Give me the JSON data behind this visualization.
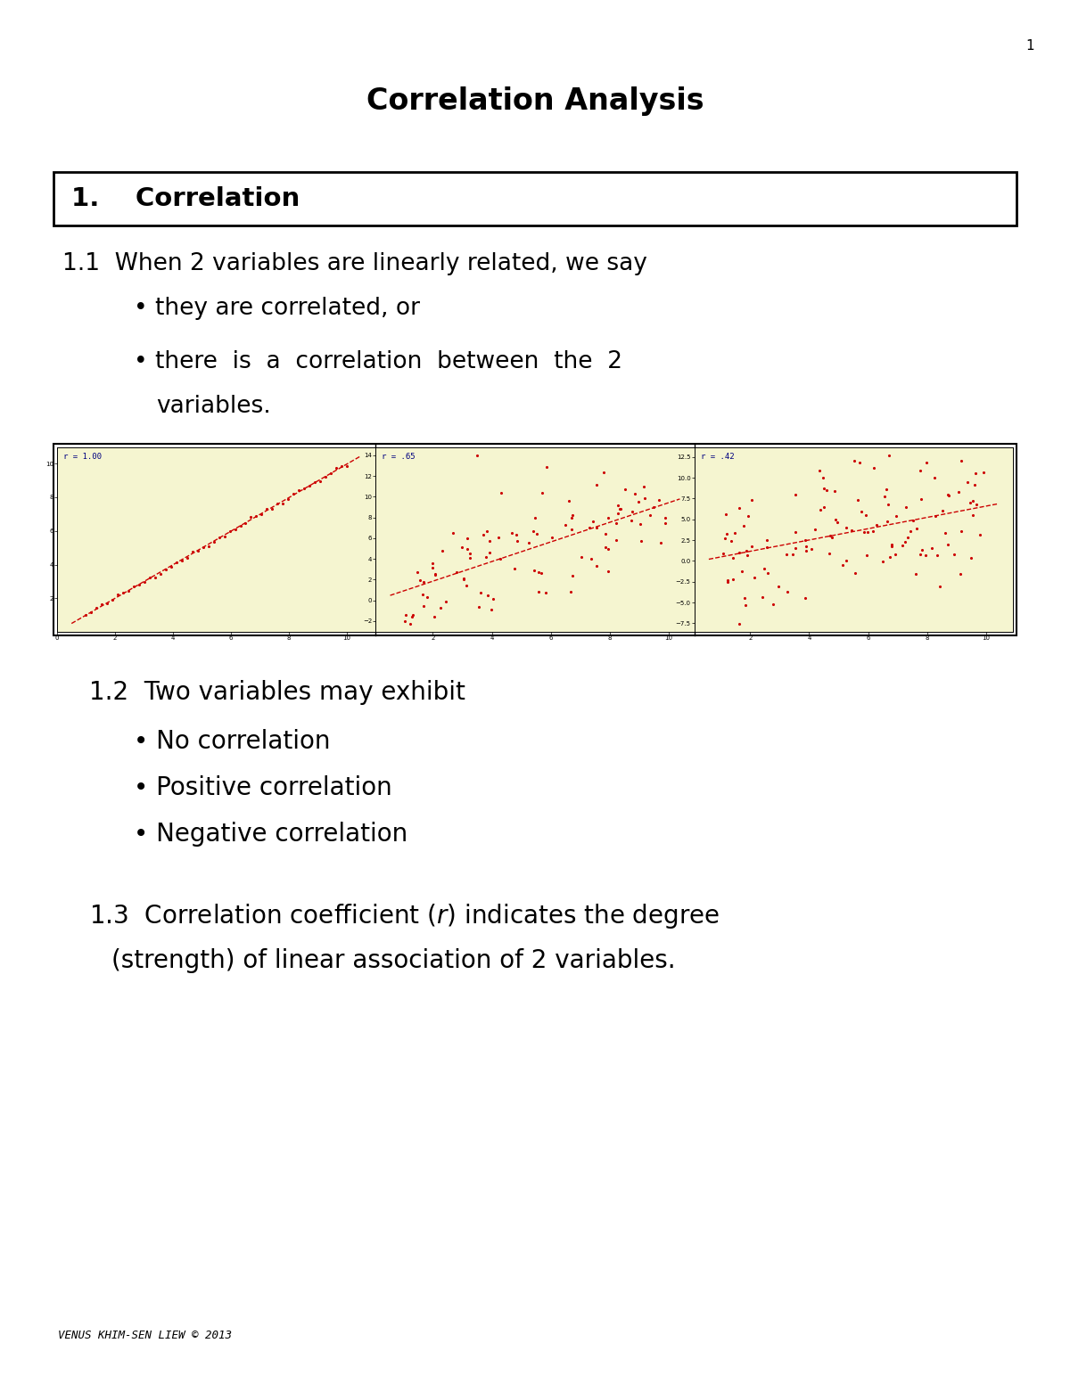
{
  "title": "Correlation Analysis",
  "page_number": "1",
  "section_header": "1.    Correlation",
  "text_11": "1.1  When 2 variables are linearly related, we say",
  "bullet1": "they are correlated, or",
  "bullet2_line1": "there  is  a  correlation  between  the  2",
  "bullet2_line2": "variables.",
  "text_12": "1.2  Two variables may exhibit",
  "bullet_12_1": "No correlation",
  "bullet_12_2": "Positive correlation",
  "bullet_12_3": "Negative correlation",
  "text_13_line1_pre": "1.3  Correlation coefficient (",
  "text_13_r": "r",
  "text_13_line1_post": ") indicates the degree",
  "text_13_line2": "(strength) of linear association of 2 variables.",
  "footer": "VENUS KHIM-SEN LIEW © 2013",
  "plot_labels": [
    "r = 1.00",
    "r = .65",
    "r = .42"
  ],
  "bg_color": "#ffffff",
  "plot_bg": "#f5f5d0",
  "dot_color": "#cc0000",
  "line_color": "#cc0000",
  "border_color": "#000000",
  "label_color": "#000080"
}
